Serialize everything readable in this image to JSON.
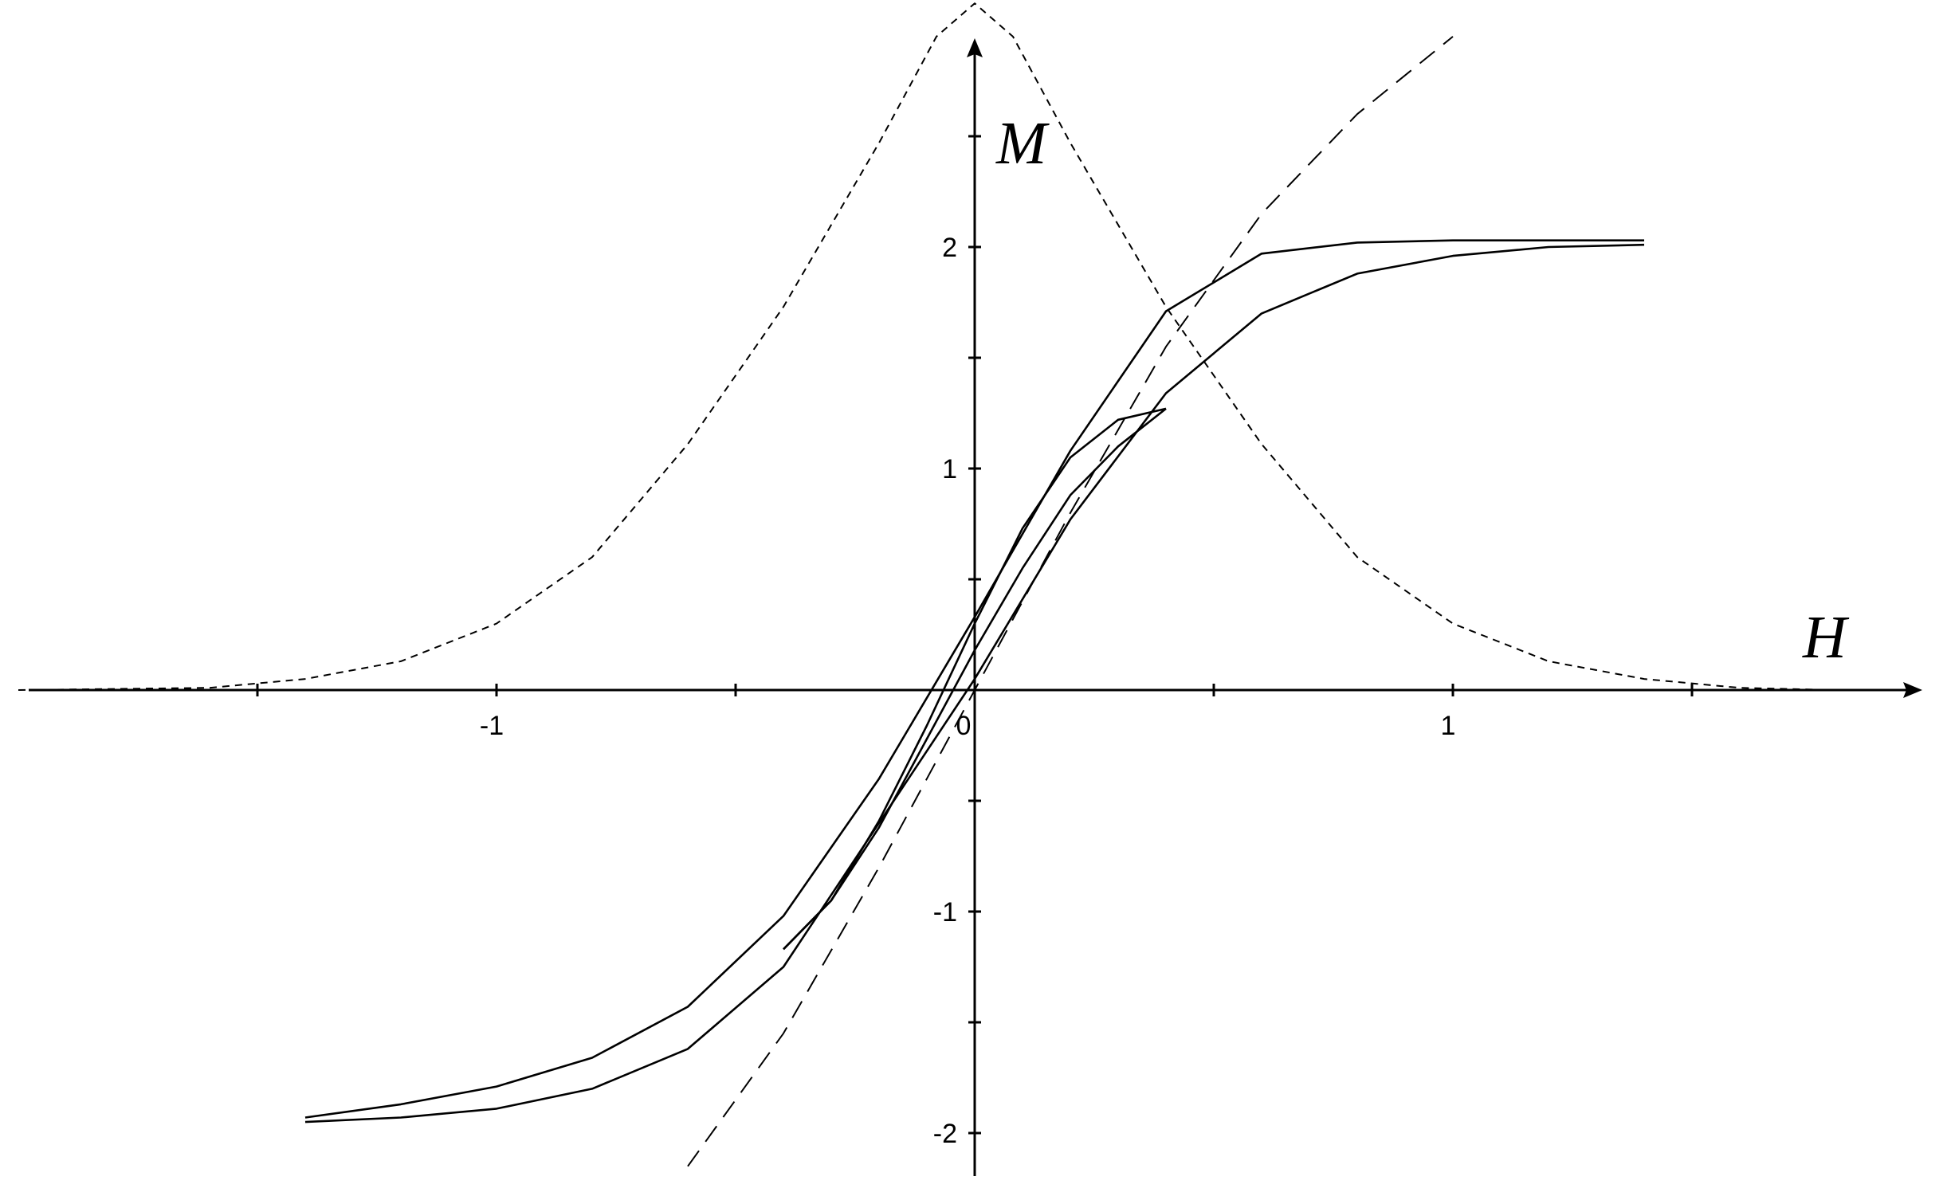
{
  "chart_data": {
    "type": "line",
    "title": "",
    "xlabel": "H",
    "ylabel": "M",
    "xlim": [
      -2.0,
      2.0
    ],
    "ylim": [
      -2.15,
      2.95
    ],
    "grid": false,
    "legend": "none",
    "x_ticks": {
      "values": [
        -1.5,
        -1,
        -0.5,
        0,
        0.5,
        1,
        1.5
      ],
      "labels": [
        "",
        "-1",
        "",
        "0",
        "",
        "1",
        ""
      ]
    },
    "y_ticks": {
      "values": [
        -2,
        -1.5,
        -1,
        -0.5,
        0.5,
        1,
        1.5,
        2,
        2.5
      ],
      "labels": [
        "-2",
        "",
        "-1",
        "",
        "",
        "1",
        "",
        "2",
        ""
      ]
    },
    "series": [
      {
        "style": "short-dash",
        "x": [
          -2.0,
          -1.6,
          -1.4,
          -1.2,
          -1.0,
          -0.8,
          -0.6,
          -0.4,
          -0.2,
          -0.08,
          0.0,
          0.08,
          0.2,
          0.4,
          0.6,
          0.8,
          1.0,
          1.2,
          1.4,
          1.6,
          1.8
        ],
        "y": [
          0.0,
          0.01,
          0.05,
          0.13,
          0.3,
          0.6,
          1.11,
          1.73,
          2.47,
          2.95,
          3.1,
          2.95,
          2.47,
          1.73,
          1.11,
          0.6,
          0.3,
          0.13,
          0.05,
          0.01,
          0.0
        ]
      },
      {
        "style": "long-dash",
        "x": [
          -0.6,
          -0.4,
          -0.2,
          0.0,
          0.2,
          0.4,
          0.6,
          0.8,
          1.0
        ],
        "y": [
          -2.15,
          -1.55,
          -0.8,
          0.0,
          0.8,
          1.55,
          2.15,
          2.6,
          2.95
        ]
      },
      {
        "style": "solid",
        "x": [
          -1.4,
          -1.2,
          -1.0,
          -0.8,
          -0.6,
          -0.4,
          -0.2,
          0.0,
          0.2,
          0.4,
          0.6,
          0.8,
          1.0,
          1.2,
          1.4
        ],
        "y": [
          -1.95,
          -1.93,
          -1.89,
          -1.8,
          -1.62,
          -1.25,
          -0.6,
          0.05,
          0.77,
          1.34,
          1.7,
          1.88,
          1.96,
          2.0,
          2.01
        ]
      },
      {
        "style": "solid",
        "x": [
          1.4,
          1.2,
          1.0,
          0.8,
          0.6,
          0.4,
          0.2,
          0.0,
          -0.2,
          -0.4,
          -0.6,
          -0.8,
          -1.0,
          -1.2,
          -1.4
        ],
        "y": [
          2.03,
          2.03,
          2.03,
          2.02,
          1.97,
          1.71,
          1.08,
          0.33,
          -0.4,
          -1.02,
          -1.43,
          -1.66,
          -1.79,
          -1.87,
          -1.93
        ]
      },
      {
        "style": "solid",
        "x": [
          -0.4,
          -0.3,
          -0.2,
          -0.1,
          0.0,
          0.1,
          0.2,
          0.3,
          0.4
        ],
        "y": [
          -1.17,
          -0.95,
          -0.62,
          -0.22,
          0.18,
          0.55,
          0.88,
          1.1,
          1.27
        ]
      },
      {
        "style": "solid",
        "x": [
          0.4,
          0.3,
          0.2,
          0.1,
          0.0,
          -0.1,
          -0.2,
          -0.3,
          -0.4
        ],
        "y": [
          1.27,
          1.22,
          1.05,
          0.73,
          0.3,
          -0.16,
          -0.59,
          -0.95,
          -1.17
        ]
      }
    ]
  }
}
